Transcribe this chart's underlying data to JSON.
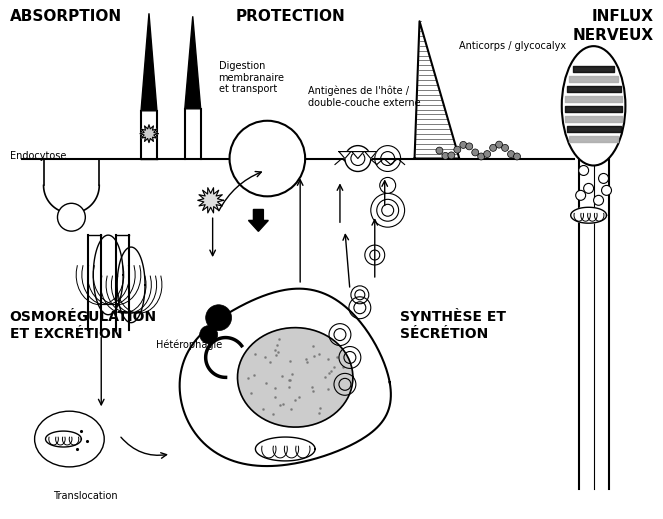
{
  "title_absorption": "ABSORPTION",
  "title_protection": "PROTECTION",
  "title_influx": "INFLUX\nNERVEUX",
  "title_osmo": "OSMORÉGULATION\nET EXCRÉTION",
  "title_synthese": "SYNTHÈSE ET\nSÉCRÉTION",
  "label_endocytose": "Endocytose",
  "label_digestion": "Digestion\nmembranaire\net transport",
  "label_antigenes": "Antigènes de l'hôte /\ndouble-couche externe",
  "label_anticorps": "Anticorps / glycocalyx",
  "label_heterophagie": "Hétérophagie",
  "label_translocation": "Translocation",
  "bg_color": "#ffffff",
  "line_color": "#000000",
  "title_fontsize": 10,
  "label_fontsize": 7
}
